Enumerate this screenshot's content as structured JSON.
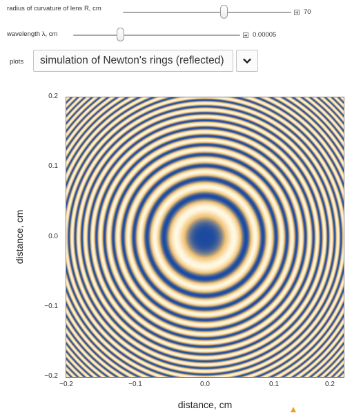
{
  "controls": {
    "radius": {
      "label": "radius of curvature of lens R, cm",
      "value": "70",
      "fraction": 0.6
    },
    "wavelength": {
      "label": "wavelength λ, cm",
      "value": "0.00005",
      "fraction": 0.28
    },
    "plots": {
      "label": "plots",
      "selected": "simulation of Newton's rings (reflected)"
    }
  },
  "plot": {
    "xlabel": "distance, cm",
    "ylabel": "distance, cm",
    "x_ticks": [
      "−0.2",
      "−0.1",
      "0.0",
      "0.1",
      "0.2"
    ],
    "y_ticks": [
      "0.2",
      "0.1",
      "0.0",
      "−0.1",
      "−0.2"
    ]
  },
  "chart_data": {
    "type": "heatmap",
    "description_function": "reflected intensity I = sin^2(pi * r^2 / (R * lambda))",
    "R_cm": 70,
    "lambda_cm": 5e-05,
    "xlim": [
      -0.2,
      0.2
    ],
    "ylim": [
      -0.2,
      0.2
    ],
    "colors": {
      "dark": "#1b4aa0",
      "mid": "#f0c070",
      "light": "#fff8e2"
    },
    "xlabel": "distance, cm",
    "ylabel": "distance, cm"
  }
}
